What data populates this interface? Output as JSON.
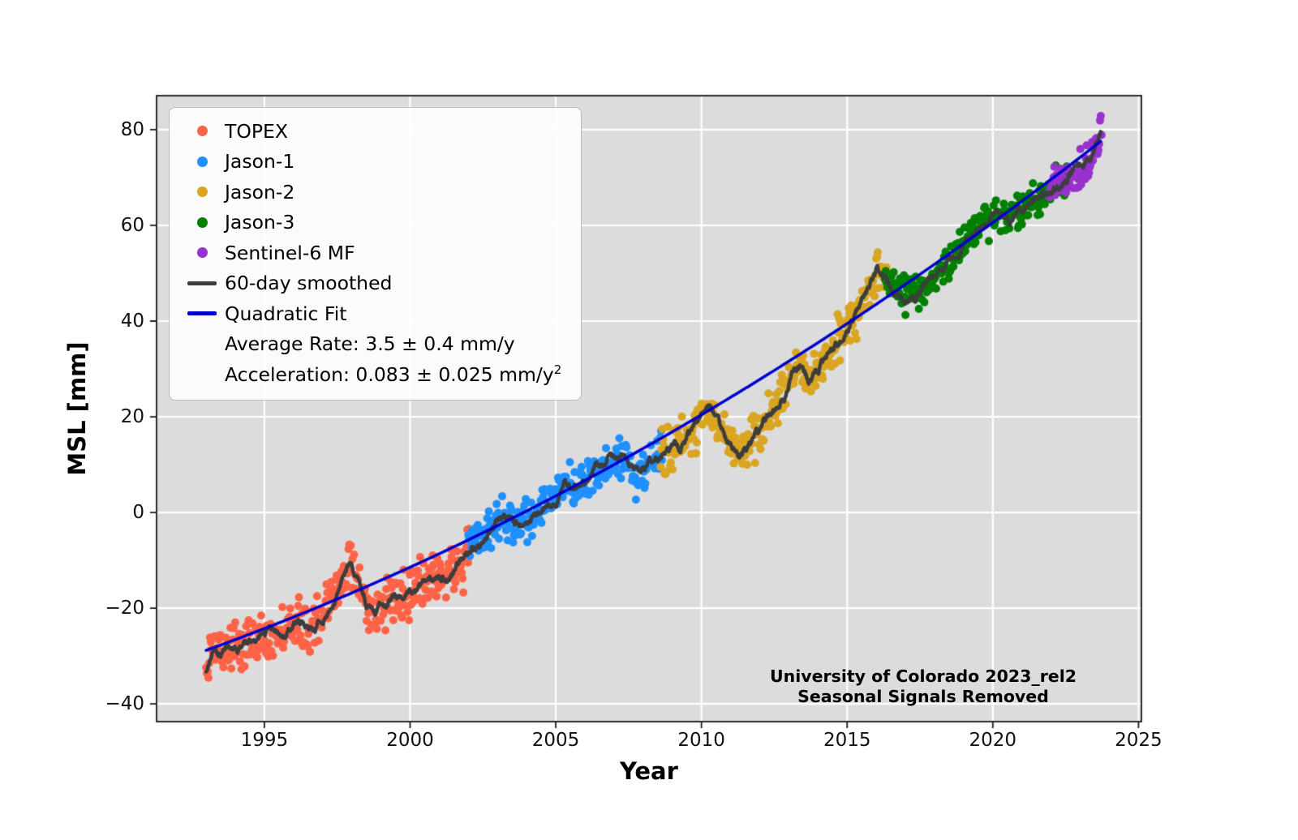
{
  "chart_data": {
    "type": "scatter",
    "title": "",
    "xlabel": "Year",
    "ylabel": "MSL [mm]",
    "xlim": [
      1991.3,
      2025.1
    ],
    "ylim": [
      -43.7,
      87.1
    ],
    "grid": true,
    "legend_position": "upper-left",
    "colors": {
      "plot_bg": "#dcdcdc",
      "grid": "#ffffff",
      "frame": "#1a1a1a",
      "smoothed": "#3d3d3d",
      "fit": "#0000cd"
    },
    "xticks": [
      {
        "v": 1995,
        "label": "1995"
      },
      {
        "v": 2000,
        "label": "2000"
      },
      {
        "v": 2005,
        "label": "2005"
      },
      {
        "v": 2010,
        "label": "2010"
      },
      {
        "v": 2015,
        "label": "2015"
      },
      {
        "v": 2020,
        "label": "2020"
      },
      {
        "v": 2025,
        "label": "2025"
      }
    ],
    "yticks": [
      {
        "v": -40,
        "label": "−40"
      },
      {
        "v": -20,
        "label": "−20"
      },
      {
        "v": 0,
        "label": "0"
      },
      {
        "v": 20,
        "label": "20"
      },
      {
        "v": 40,
        "label": "40"
      },
      {
        "v": 60,
        "label": "60"
      },
      {
        "v": 80,
        "label": "80"
      }
    ],
    "missions": [
      {
        "name": "TOPEX",
        "color": "#ff6347",
        "start": 1993.0,
        "end": 2002.05,
        "cadence": 0.027,
        "sigma": 2.6
      },
      {
        "name": "Jason-1",
        "color": "#1e90ff",
        "start": 2002.0,
        "end": 2008.65,
        "cadence": 0.027,
        "sigma": 2.2
      },
      {
        "name": "Jason-2",
        "color": "#daa520",
        "start": 2008.6,
        "end": 2016.35,
        "cadence": 0.027,
        "sigma": 2.2
      },
      {
        "name": "Jason-3",
        "color": "#008000",
        "start": 2016.3,
        "end": 2022.6,
        "cadence": 0.027,
        "sigma": 1.9
      },
      {
        "name": "Sentinel-6 MF",
        "color": "#9932cc",
        "start": 2021.95,
        "end": 2023.75,
        "cadence": 0.027,
        "sigma": 2.0
      }
    ],
    "smoothed": {
      "label": "60-day smoothed",
      "color": "#3d3d3d",
      "anchors": [
        [
          1993.0,
          -33
        ],
        [
          1993.15,
          -29.5
        ],
        [
          1993.3,
          -28
        ],
        [
          1993.6,
          -28.5
        ],
        [
          1994.0,
          -27
        ],
        [
          1994.5,
          -27.5
        ],
        [
          1995.0,
          -25
        ],
        [
          1995.5,
          -24.5
        ],
        [
          1996.0,
          -23.5
        ],
        [
          1996.5,
          -24
        ],
        [
          1997.0,
          -22
        ],
        [
          1997.3,
          -19
        ],
        [
          1997.6,
          -14.5
        ],
        [
          1997.9,
          -10.5
        ],
        [
          1998.2,
          -13
        ],
        [
          1998.5,
          -18
        ],
        [
          1998.8,
          -21.5
        ],
        [
          1999.1,
          -19
        ],
        [
          1999.4,
          -17.5
        ],
        [
          1999.7,
          -18.5
        ],
        [
          2000.0,
          -16.5
        ],
        [
          2000.3,
          -15.5
        ],
        [
          2000.6,
          -16
        ],
        [
          2001.0,
          -14
        ],
        [
          2001.4,
          -12.5
        ],
        [
          2001.8,
          -9.5
        ],
        [
          2002.2,
          -7.5
        ],
        [
          2002.6,
          -5
        ],
        [
          2002.9,
          -2.5
        ],
        [
          2003.2,
          -1.5
        ],
        [
          2003.5,
          -2.5
        ],
        [
          2003.8,
          -1
        ],
        [
          2004.1,
          -1.5
        ],
        [
          2004.4,
          0.5
        ],
        [
          2004.7,
          1.5
        ],
        [
          2005.0,
          3
        ],
        [
          2005.3,
          6
        ],
        [
          2005.6,
          5
        ],
        [
          2006.0,
          6.5
        ],
        [
          2006.4,
          9
        ],
        [
          2006.8,
          10.5
        ],
        [
          2007.2,
          11.5
        ],
        [
          2007.5,
          9
        ],
        [
          2007.8,
          8
        ],
        [
          2008.1,
          9.5
        ],
        [
          2008.5,
          12
        ],
        [
          2008.9,
          13.5
        ],
        [
          2009.3,
          14.5
        ],
        [
          2009.7,
          16.5
        ],
        [
          2010.0,
          20
        ],
        [
          2010.3,
          21.5
        ],
        [
          2010.7,
          17
        ],
        [
          2011.0,
          14.5
        ],
        [
          2011.3,
          12.5
        ],
        [
          2011.6,
          13.5
        ],
        [
          2012.0,
          17
        ],
        [
          2012.4,
          21
        ],
        [
          2012.8,
          24.5
        ],
        [
          2013.1,
          29
        ],
        [
          2013.4,
          31
        ],
        [
          2013.7,
          27.5
        ],
        [
          2014.0,
          30
        ],
        [
          2014.4,
          33.5
        ],
        [
          2014.8,
          36.5
        ],
        [
          2015.2,
          40
        ],
        [
          2015.6,
          45
        ],
        [
          2016.0,
          50.5
        ],
        [
          2016.3,
          49.5
        ],
        [
          2016.6,
          46.5
        ],
        [
          2017.0,
          45.5
        ],
        [
          2017.4,
          46.5
        ],
        [
          2017.8,
          48.5
        ],
        [
          2018.2,
          50.5
        ],
        [
          2018.6,
          53
        ],
        [
          2019.0,
          56
        ],
        [
          2019.4,
          59
        ],
        [
          2019.8,
          61.5
        ],
        [
          2020.2,
          62
        ],
        [
          2020.6,
          61.5
        ],
        [
          2021.0,
          63.5
        ],
        [
          2021.4,
          65
        ],
        [
          2021.8,
          66.5
        ],
        [
          2022.2,
          68
        ],
        [
          2022.6,
          70
        ],
        [
          2023.0,
          71.5
        ],
        [
          2023.3,
          73
        ],
        [
          2023.5,
          75
        ],
        [
          2023.7,
          79.5
        ]
      ]
    },
    "fit": {
      "label": "Quadratic Fit",
      "color": "#0000cd",
      "t_ref": 1993,
      "y0": -28.8,
      "rate": 2.19,
      "half_accel": 0.0415,
      "start": 1993.0,
      "end": 2023.72
    },
    "legend": {
      "entries": [
        {
          "type": "dot",
          "color": "#ff6347",
          "label": "TOPEX"
        },
        {
          "type": "dot",
          "color": "#1e90ff",
          "label": "Jason-1"
        },
        {
          "type": "dot",
          "color": "#daa520",
          "label": "Jason-2"
        },
        {
          "type": "dot",
          "color": "#008000",
          "label": "Jason-3"
        },
        {
          "type": "dot",
          "color": "#9932cc",
          "label": "Sentinel-6 MF"
        },
        {
          "type": "line",
          "color": "#3d3d3d",
          "label": "60-day smoothed"
        },
        {
          "type": "line",
          "color": "#0000cd",
          "label": "Quadratic Fit"
        }
      ],
      "stats": [
        {
          "text": "Average Rate: 3.5 ± 0.4 mm/y",
          "sup": ""
        },
        {
          "text": "Acceleration: 0.083 ± 0.025 mm/y",
          "sup": "2"
        }
      ]
    },
    "annotation": {
      "line1": "University of Colorado 2023_rel2",
      "line2": "Seasonal Signals Removed"
    }
  }
}
